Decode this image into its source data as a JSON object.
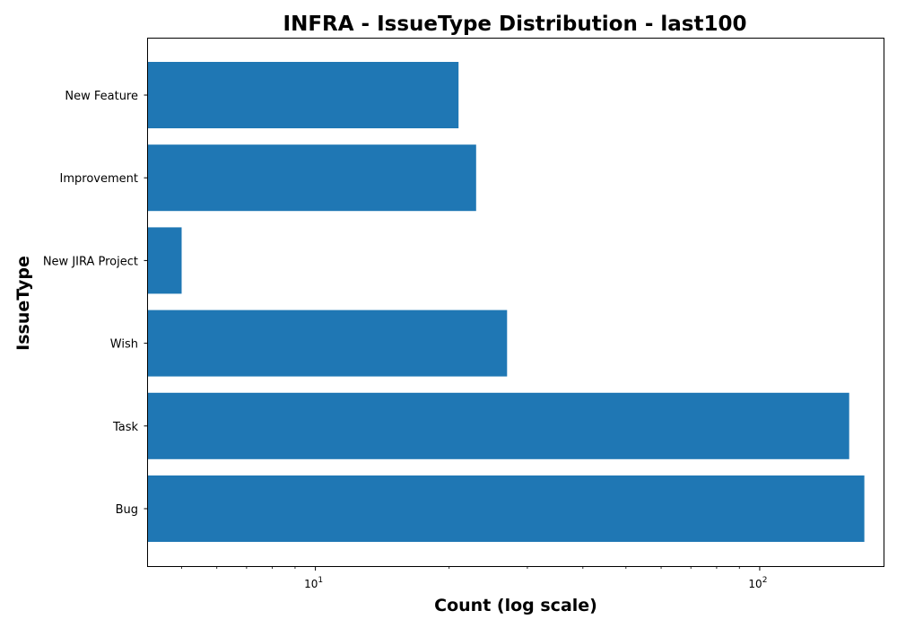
{
  "chart_data": {
    "type": "bar",
    "orientation": "horizontal",
    "title": "INFRA - IssueType Distribution - last100",
    "xlabel": "Count (log scale)",
    "ylabel": "IssueType",
    "x_scale": "log",
    "xlim": [
      4.2,
      190
    ],
    "categories": [
      "New Feature",
      "Improvement",
      "New JIRA Project",
      "Wish",
      "Task",
      "Bug"
    ],
    "values": [
      21,
      23,
      5,
      27,
      159,
      172
    ],
    "xticks": [
      {
        "value": 10,
        "base": "10",
        "exp": "1"
      },
      {
        "value": 100,
        "base": "10",
        "exp": "2"
      }
    ],
    "bar_color": "#1f77b4",
    "grid": false,
    "legend": "none"
  }
}
